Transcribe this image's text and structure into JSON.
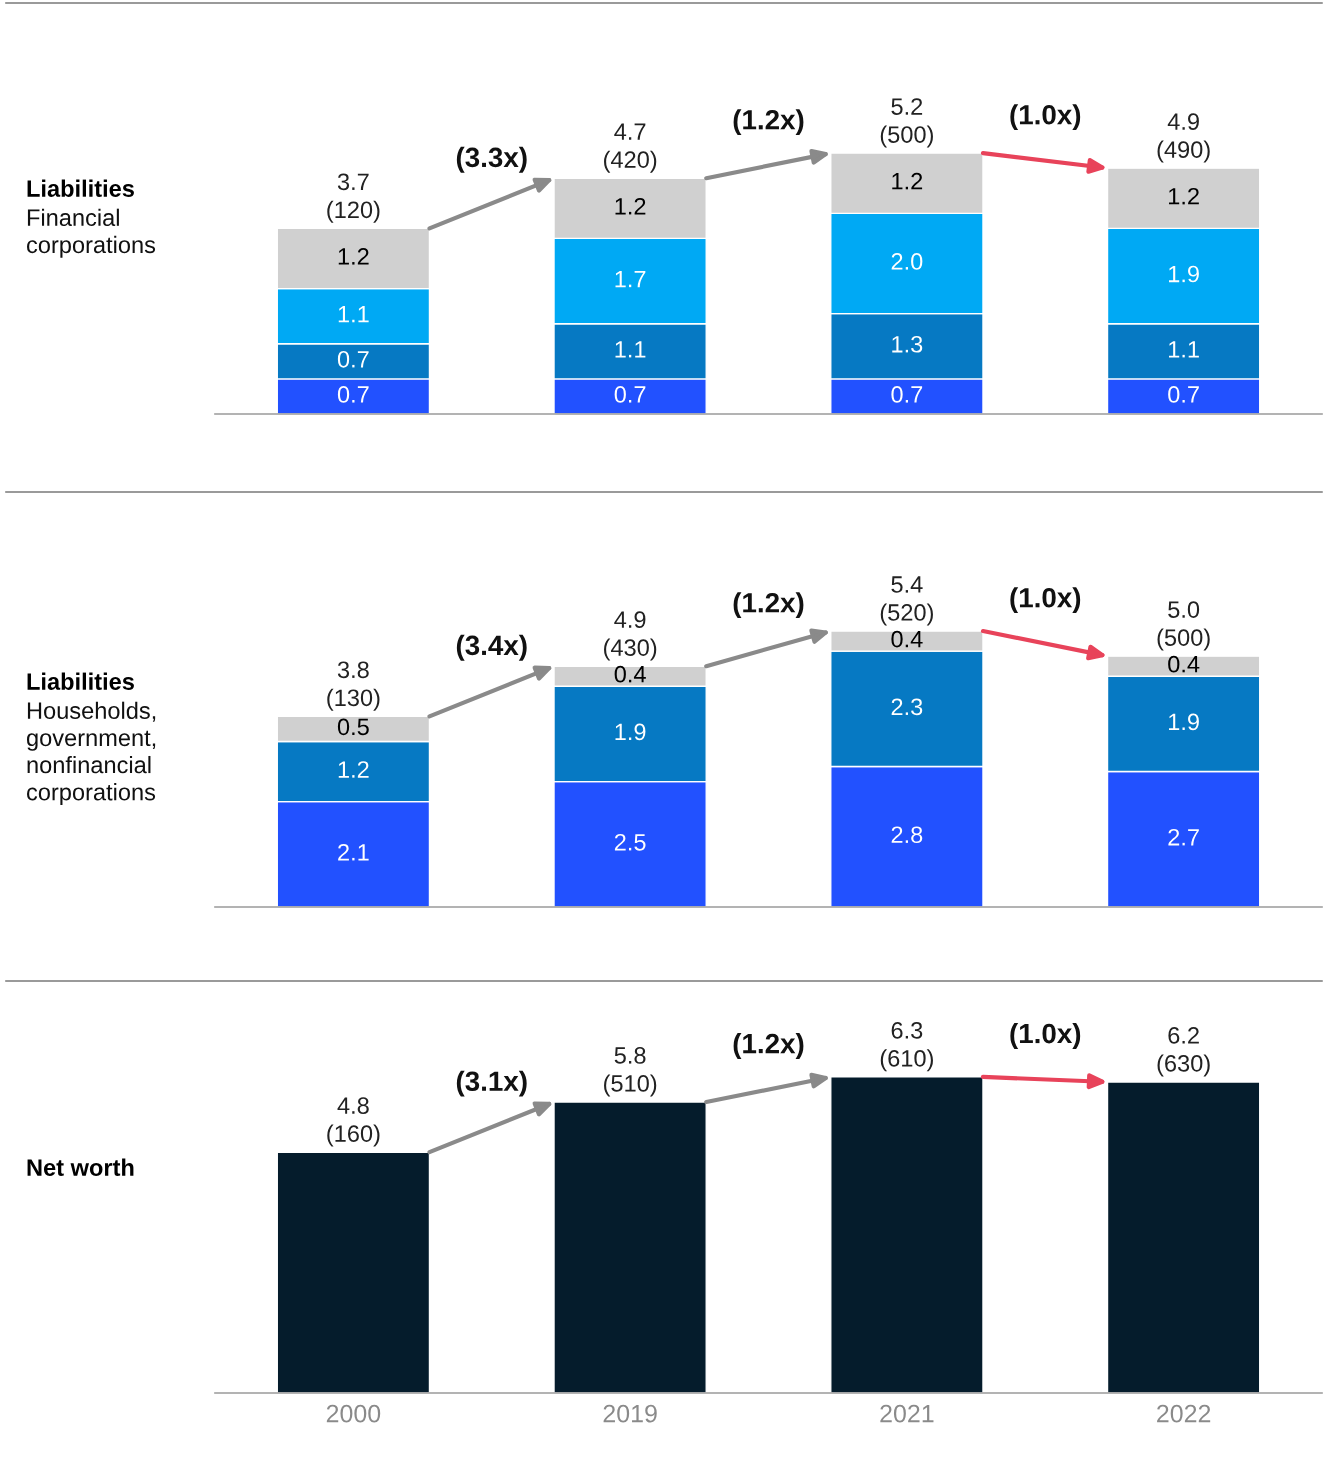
{
  "chart_data": [
    {
      "type": "bar",
      "title": "Liabilities",
      "subtitle": "Financial\ncorporations",
      "categories": [
        "2000",
        "2019",
        "2021",
        "2022"
      ],
      "stacked": true,
      "tick_labels": false,
      "grid": false,
      "series": [
        {
          "color": "#2251ff",
          "values": [
            0.7,
            0.7,
            0.7,
            0.7
          ],
          "value_labels": [
            "0.7",
            "0.7",
            "0.7",
            "0.7"
          ]
        },
        {
          "color": "#0679c3",
          "values": [
            0.7,
            1.1,
            1.3,
            1.1
          ],
          "value_labels": [
            "0.7",
            "1.1",
            "1.3",
            "1.1"
          ]
        },
        {
          "color": "#00a9f4",
          "values": [
            1.1,
            1.7,
            2.0,
            1.9
          ],
          "value_labels": [
            "1.1",
            "1.7",
            "2.0",
            "1.9"
          ]
        },
        {
          "color": "#d0d0d0",
          "values": [
            1.2,
            1.2,
            1.2,
            1.2
          ],
          "value_labels": [
            "1.2",
            "1.2",
            "1.2",
            "1.2"
          ]
        }
      ],
      "totals": [
        "3.7\n(120)",
        "4.7\n(420)",
        "5.2\n(500)",
        "4.9\n(490)"
      ],
      "annotations": [
        "(3.3x)",
        "(1.2x)",
        "(1.0x)"
      ]
    },
    {
      "type": "bar",
      "title": "Liabilities",
      "subtitle": "Households,\ngovernment,\nnonfinancial\ncorporations",
      "categories": [
        "2000",
        "2019",
        "2021",
        "2022"
      ],
      "stacked": true,
      "tick_labels": false,
      "grid": false,
      "series": [
        {
          "color": "#2251ff",
          "values": [
            2.1,
            2.5,
            2.8,
            2.7
          ],
          "value_labels": [
            "2.1",
            "2.5",
            "2.8",
            "2.7"
          ]
        },
        {
          "color": "#0679c3",
          "values": [
            1.2,
            1.9,
            2.3,
            1.9
          ],
          "value_labels": [
            "1.2",
            "1.9",
            "2.3",
            "1.9"
          ]
        },
        {
          "color": "#d0d0d0",
          "values": [
            0.5,
            0.4,
            0.4,
            0.4
          ],
          "value_labels": [
            "0.5",
            "0.4",
            "0.4",
            "0.4"
          ]
        }
      ],
      "totals": [
        "3.8\n(130)",
        "4.9\n(430)",
        "5.4\n(520)",
        "5.0\n(500)"
      ],
      "annotations": [
        "(3.4x)",
        "(1.2x)",
        "(1.0x)"
      ]
    },
    {
      "type": "bar",
      "title": "Net worth",
      "categories": [
        "2000",
        "2019",
        "2021",
        "2022"
      ],
      "grid": false,
      "series": [
        {
          "color": "#051c2c",
          "values": [
            4.8,
            5.8,
            6.3,
            6.2
          ],
          "value_labels": [
            "4.8\n(160)",
            "5.8\n(510)",
            "6.3\n(610)",
            "6.2\n(630)"
          ]
        }
      ],
      "annotations": [
        "(3.1x)",
        "(1.2x)",
        "(1.0x)"
      ]
    }
  ]
}
